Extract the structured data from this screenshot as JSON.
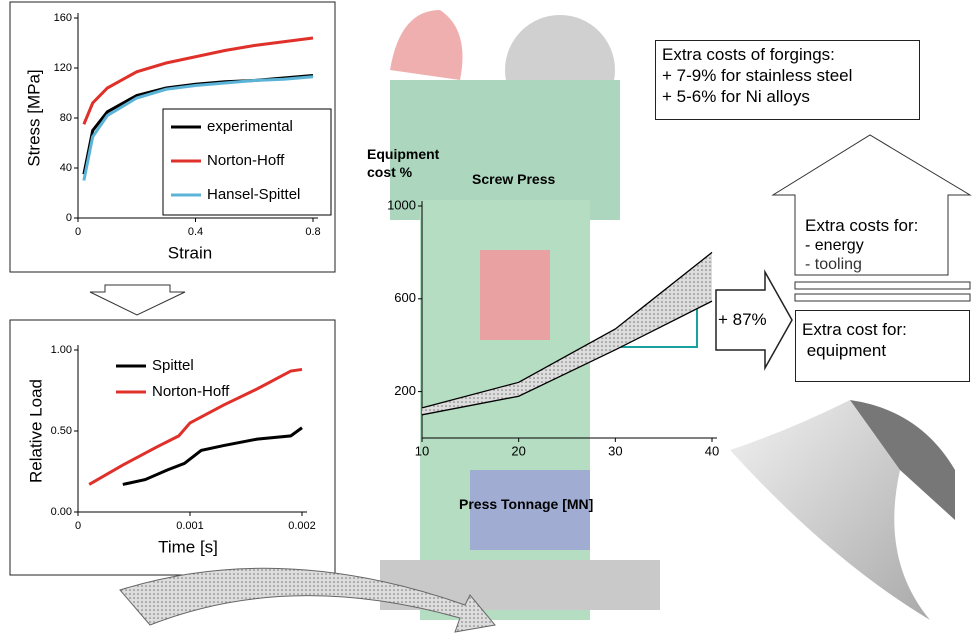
{
  "chart_data": [
    {
      "type": "line",
      "xlabel": "Strain",
      "ylabel": "Stress [MPa]",
      "x": [
        0.02,
        0.05,
        0.1,
        0.2,
        0.3,
        0.4,
        0.5,
        0.6,
        0.7,
        0.8
      ],
      "series": [
        {
          "name": "experimental",
          "color": "#000000",
          "values": [
            35,
            70,
            85,
            98,
            104,
            107,
            109,
            110,
            112,
            114
          ]
        },
        {
          "name": "Norton-Hoff",
          "color": "#e0302a",
          "values": [
            75,
            92,
            104,
            117,
            124,
            129,
            134,
            138,
            141,
            144
          ]
        },
        {
          "name": "Hansel-Spittel",
          "color": "#5bb4d8",
          "values": [
            30,
            65,
            82,
            96,
            103,
            106,
            108,
            110,
            111,
            113
          ]
        }
      ],
      "xlim": [
        0,
        0.8
      ],
      "xticks": [
        0,
        0.4,
        0.8
      ],
      "ylim": [
        0,
        160
      ],
      "yticks": [
        0,
        40,
        80,
        120,
        160
      ],
      "legend": "lower right"
    },
    {
      "type": "line",
      "xlabel": "Time [s]",
      "ylabel": "Relative Load",
      "series": [
        {
          "name": "Spittel",
          "color": "#000000",
          "x": [
            0.0004,
            0.0006,
            0.0008,
            0.00095,
            0.0011,
            0.0013,
            0.0016,
            0.0019,
            0.002
          ],
          "values": [
            0.17,
            0.2,
            0.26,
            0.3,
            0.38,
            0.41,
            0.45,
            0.47,
            0.52
          ]
        },
        {
          "name": "Norton-Hoff",
          "color": "#e0302a",
          "x": [
            0.0001,
            0.0004,
            0.0007,
            0.0009,
            0.001,
            0.0013,
            0.0016,
            0.0019,
            0.002
          ],
          "values": [
            0.17,
            0.29,
            0.4,
            0.47,
            0.55,
            0.66,
            0.76,
            0.87,
            0.88
          ]
        }
      ],
      "xlim": [
        0,
        0.002
      ],
      "xticks": [
        0,
        0.001,
        0.002
      ],
      "ylim": [
        0,
        1
      ],
      "yticks": [
        {
          "value": 0,
          "label": "0.00"
        },
        {
          "value": 0.5,
          "label": "0.50"
        },
        {
          "value": 1,
          "label": "1.00"
        }
      ],
      "legend": "upper left"
    },
    {
      "type": "band",
      "title": "Screw Press",
      "xlabel": "Press Tonnage [MN]",
      "ylabel": "Equipment cost %",
      "x": [
        10,
        20,
        30,
        40
      ],
      "series": [
        {
          "color": "#000000",
          "values": [
            100,
            180,
            380,
            590
          ]
        },
        {
          "color": "#000000",
          "values": [
            130,
            240,
            470,
            800
          ]
        }
      ],
      "xlim": [
        10,
        40
      ],
      "xticks": [
        10,
        20,
        30,
        40
      ],
      "ylim": [
        0,
        1000
      ],
      "yticks": [
        200,
        600,
        1000
      ]
    }
  ],
  "annotations": {
    "forgings": [
      "Extra costs of forgings:",
      "+ 7-9% for stainless steel",
      "+ 5-6% for Ni alloys"
    ],
    "energy": [
      "Extra costs for:",
      "- energy",
      "- tooling"
    ],
    "equipment": [
      "Extra cost for:",
      " equipment"
    ],
    "increase": "+ 87%"
  }
}
